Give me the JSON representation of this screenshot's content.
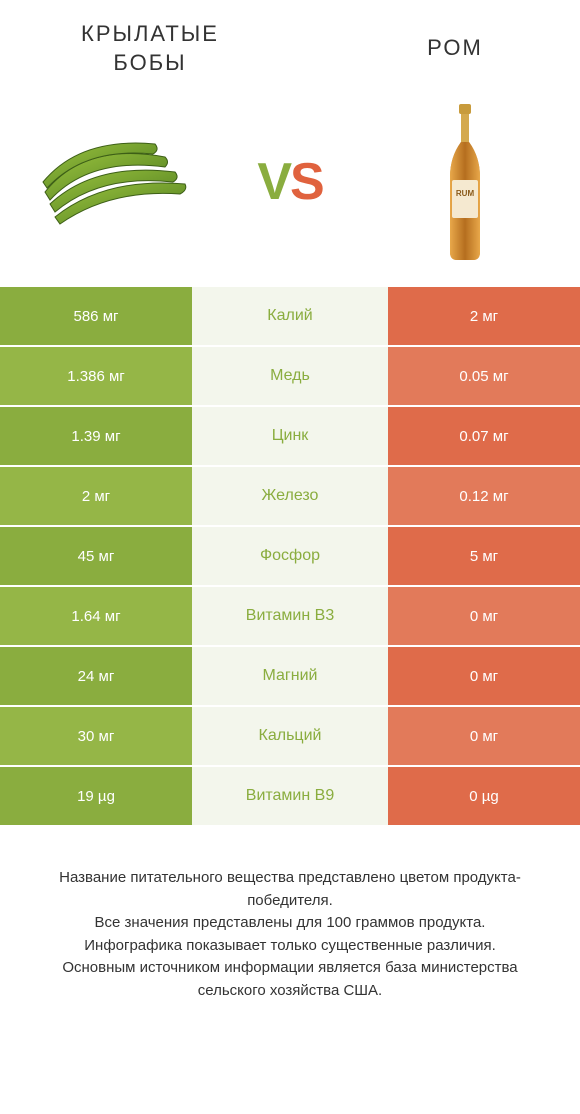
{
  "titles": {
    "left": "КРЫЛАТЫЕ БОБЫ",
    "right": "РОМ"
  },
  "vs": {
    "v": "V",
    "s": "S"
  },
  "colors": {
    "left_bg": "#8aad3f",
    "left_alt_bg": "#95b647",
    "right_bg": "#df6b4a",
    "right_alt_bg": "#e27a5a",
    "mid_bg": "#f3f6ec",
    "mid_text_left": "#8aad3f",
    "mid_text_right": "#df6b4a"
  },
  "rows": [
    {
      "left": "586 мг",
      "mid": "Калий",
      "right": "2 мг",
      "winner": "left"
    },
    {
      "left": "1.386 мг",
      "mid": "Медь",
      "right": "0.05 мг",
      "winner": "left"
    },
    {
      "left": "1.39 мг",
      "mid": "Цинк",
      "right": "0.07 мг",
      "winner": "left"
    },
    {
      "left": "2 мг",
      "mid": "Железо",
      "right": "0.12 мг",
      "winner": "left"
    },
    {
      "left": "45 мг",
      "mid": "Фосфор",
      "right": "5 мг",
      "winner": "left"
    },
    {
      "left": "1.64 мг",
      "mid": "Витамин B3",
      "right": "0 мг",
      "winner": "left"
    },
    {
      "left": "24 мг",
      "mid": "Магний",
      "right": "0 мг",
      "winner": "left"
    },
    {
      "left": "30 мг",
      "mid": "Кальций",
      "right": "0 мг",
      "winner": "left"
    },
    {
      "left": "19 µg",
      "mid": "Витамин B9",
      "right": "0 µg",
      "winner": "left"
    }
  ],
  "footer": [
    "Название питательного вещества представлено цветом продукта-победителя.",
    "Все значения представлены для 100 граммов продукта.",
    "Инфографика показывает только существенные различия.",
    "Основным источником информации является база министерства сельского хозяйства США."
  ]
}
